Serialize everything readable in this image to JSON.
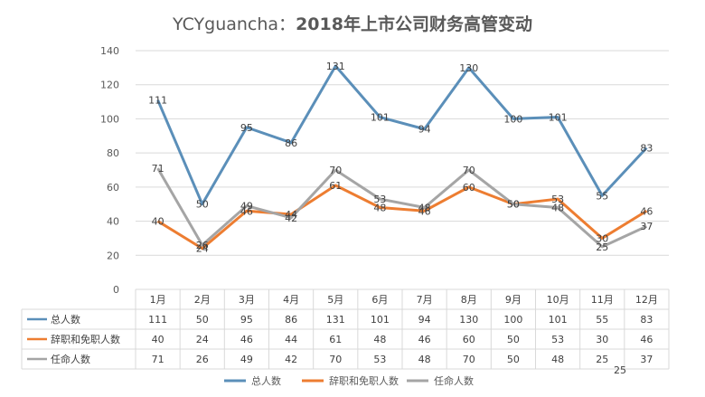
{
  "chart_data": {
    "type": "line",
    "title_prefix": "YCYguancha：",
    "title_main": "2018年上市公司财务高管变动",
    "categories": [
      "1月",
      "2月",
      "3月",
      "4月",
      "5月",
      "6月",
      "7月",
      "8月",
      "9月",
      "10月",
      "11月",
      "12月"
    ],
    "series": [
      {
        "name": "总人数",
        "color": "#5b8fb9",
        "values": [
          111,
          50,
          95,
          86,
          131,
          101,
          94,
          130,
          100,
          101,
          55,
          83
        ]
      },
      {
        "name": "辞职和免职人数",
        "color": "#ed7d31",
        "values": [
          40,
          24,
          46,
          44,
          61,
          48,
          46,
          60,
          50,
          53,
          30,
          46
        ]
      },
      {
        "name": "任命人数",
        "color": "#a5a5a5",
        "values": [
          71,
          26,
          49,
          42,
          70,
          53,
          48,
          70,
          50,
          48,
          25,
          37
        ]
      }
    ],
    "ylim": [
      0,
      140
    ],
    "yticks": [
      0,
      20,
      40,
      60,
      80,
      100,
      120,
      140
    ],
    "grid": true,
    "data_table": true,
    "legend_position": "bottom",
    "extra_label": "25"
  }
}
